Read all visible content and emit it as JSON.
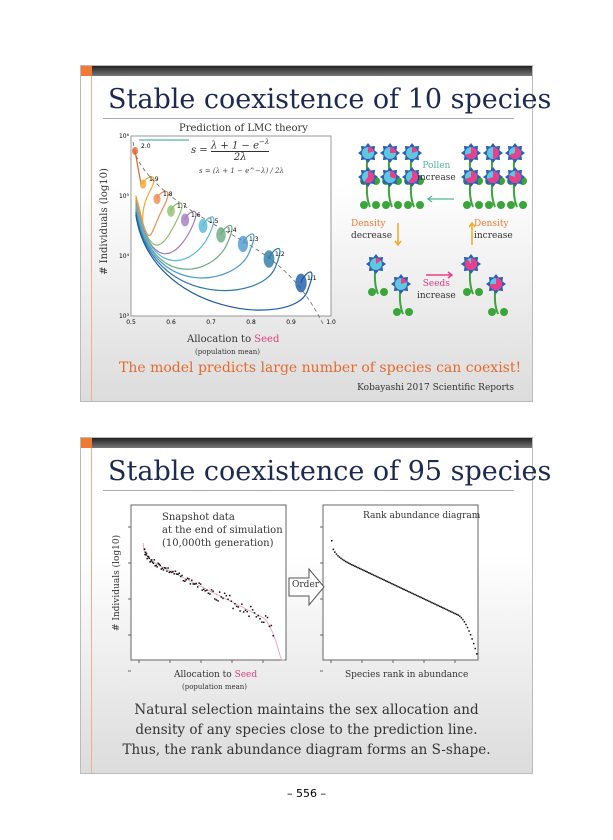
{
  "slide1": {
    "title": "Stable coexistence of 10 species",
    "prediction_label": "Prediction of LMC theory",
    "formula": "s = (λ + 1 − e^−λ) / 2λ",
    "formula_num": "λ + 1 − e",
    "formula_exp": "−λ",
    "formula_den": "2λ",
    "formula_lhs": "s =",
    "ylabel": "# Individuals (log10)",
    "xlabel_prefix": "Allocation to ",
    "xlabel_seed": "Seed",
    "xlabel_sub": "(population mean)",
    "pollen": "Pollen",
    "pollen_inc": "increase",
    "density": "Density",
    "decrease": "decrease",
    "increase": "increase",
    "seeds": "Seeds",
    "seeds_inc": "increase",
    "conclusion": "The model predicts large number of species can coexist!",
    "citation": "Kobayashi 2017 Scientific Reports",
    "colors": {
      "seed": "#e0407f",
      "pollen": "#4fb89a",
      "density": "#f07a33",
      "arrow_density": "#f4a81d",
      "conclusion": "#e56a2e"
    }
  },
  "chart_data": [
    {
      "type": "line",
      "xlim": [
        0.5,
        1.0
      ],
      "ylim": [
        3,
        6
      ],
      "yscale": "log10",
      "x_ticks": [
        "0.5",
        "0.6",
        "0.7",
        "0.8",
        "0.9",
        "1.0"
      ],
      "y_ticks": [
        "10³",
        "10⁴",
        "10⁵",
        "10⁶"
      ],
      "series_labels": [
        "2.0",
        "1.9",
        "1.8",
        "1.7",
        "1.6",
        "1.5",
        "1.4",
        "1.3",
        "1.2",
        "1.1"
      ],
      "equilibria": [
        [
          0.51,
          5.75
        ],
        [
          0.53,
          5.2
        ],
        [
          0.565,
          4.95
        ],
        [
          0.6,
          4.75
        ],
        [
          0.635,
          4.6
        ],
        [
          0.68,
          4.5
        ],
        [
          0.725,
          4.35
        ],
        [
          0.78,
          4.2
        ],
        [
          0.845,
          3.95
        ],
        [
          0.925,
          3.55
        ]
      ],
      "series_colors": [
        "#e8622a",
        "#f2a630",
        "#f08a50",
        "#8cc06a",
        "#a07cc0",
        "#58b8d8",
        "#6aaa80",
        "#4a9ad0",
        "#2a78a8",
        "#1a5aa8"
      ]
    },
    {
      "type": "scatter",
      "title": "Snapshot data at the end of simulation (10,000th generation)"
    },
    {
      "type": "scatter",
      "title": "Rank abundance diagram",
      "xlabel": "Species rank in abundance"
    }
  ],
  "slide2": {
    "title": "Stable coexistence of 95 species",
    "snapshot1": "Snapshot data",
    "snapshot2": "at the end of simulation",
    "snapshot3": "(10,000th generation)",
    "ylabel": "# Individuals (log10)",
    "xlabel_prefix": "Allocation to ",
    "xlabel_seed": "Seed",
    "xlabel_sub": "(population mean)",
    "order": "Order",
    "rank_title": "Rank abundance diagram",
    "rank_xlabel": "Species rank in abundance",
    "body1": "Natural selection maintains the sex allocation and",
    "body2": "density of any species close to the prediction line.",
    "body3": "Thus, the rank abundance diagram forms an S-shape."
  },
  "page_number": "– 556 –"
}
